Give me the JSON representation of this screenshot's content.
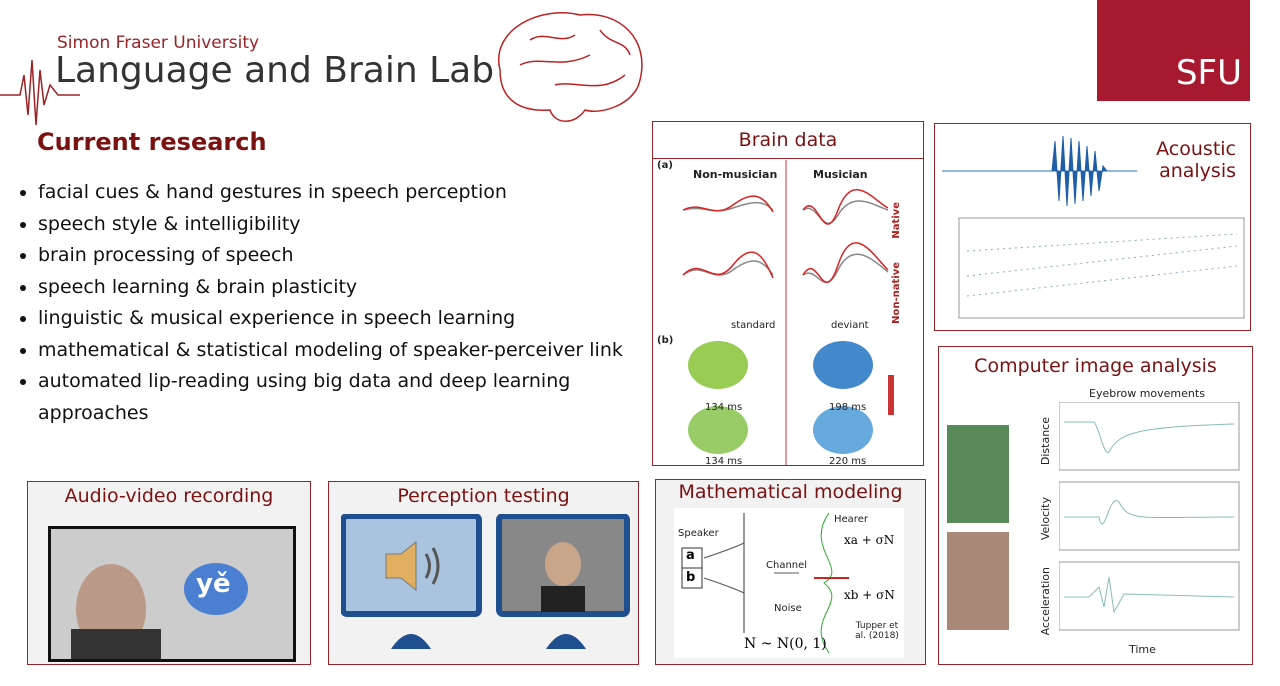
{
  "header": {
    "university": "Simon Fraser University",
    "lab": "Language and Brain Lab",
    "logo": "SFU"
  },
  "research": {
    "title": "Current research",
    "items": [
      "facial cues & hand gestures in speech perception",
      "speech style & intelligibility",
      "brain processing of speech",
      "speech learning & brain plasticity",
      "linguistic & musical experience in speech learning",
      "mathematical & statistical modeling of speaker-perceiver link",
      "automated lip-reading using big data and deep learning approaches"
    ]
  },
  "panels": {
    "brain": {
      "title": "Brain data",
      "panel_a": "(a)",
      "panel_b": "(b)",
      "groups": [
        "Non-musician",
        "Musician"
      ],
      "rows": [
        "Native",
        "Non-native"
      ],
      "legend": [
        "standard",
        "deviant"
      ],
      "latencies": [
        "134 ms",
        "198 ms",
        "134 ms",
        "220 ms"
      ]
    },
    "acoustic": {
      "title": "Acoustic analysis"
    },
    "image": {
      "title": "Computer image analysis",
      "plot_title": "Eyebrow movements",
      "ylabels": [
        "Distance",
        "Velocity",
        "Acceleration"
      ],
      "xlabel": "Time"
    },
    "audio": {
      "title": "Audio-video recording",
      "bubble": "yě"
    },
    "perception": {
      "title": "Perception testing"
    },
    "math": {
      "title": "Mathematical modeling",
      "speaker": "Speaker",
      "hearer": "Hearer",
      "channel": "Channel",
      "noise": "Noise",
      "a": "a",
      "b": "b",
      "xa": "xa + σN",
      "xb": "xb + σN",
      "dist": "N ~ N(0, 1)",
      "citation": "Tupper et al. (2018)"
    }
  }
}
